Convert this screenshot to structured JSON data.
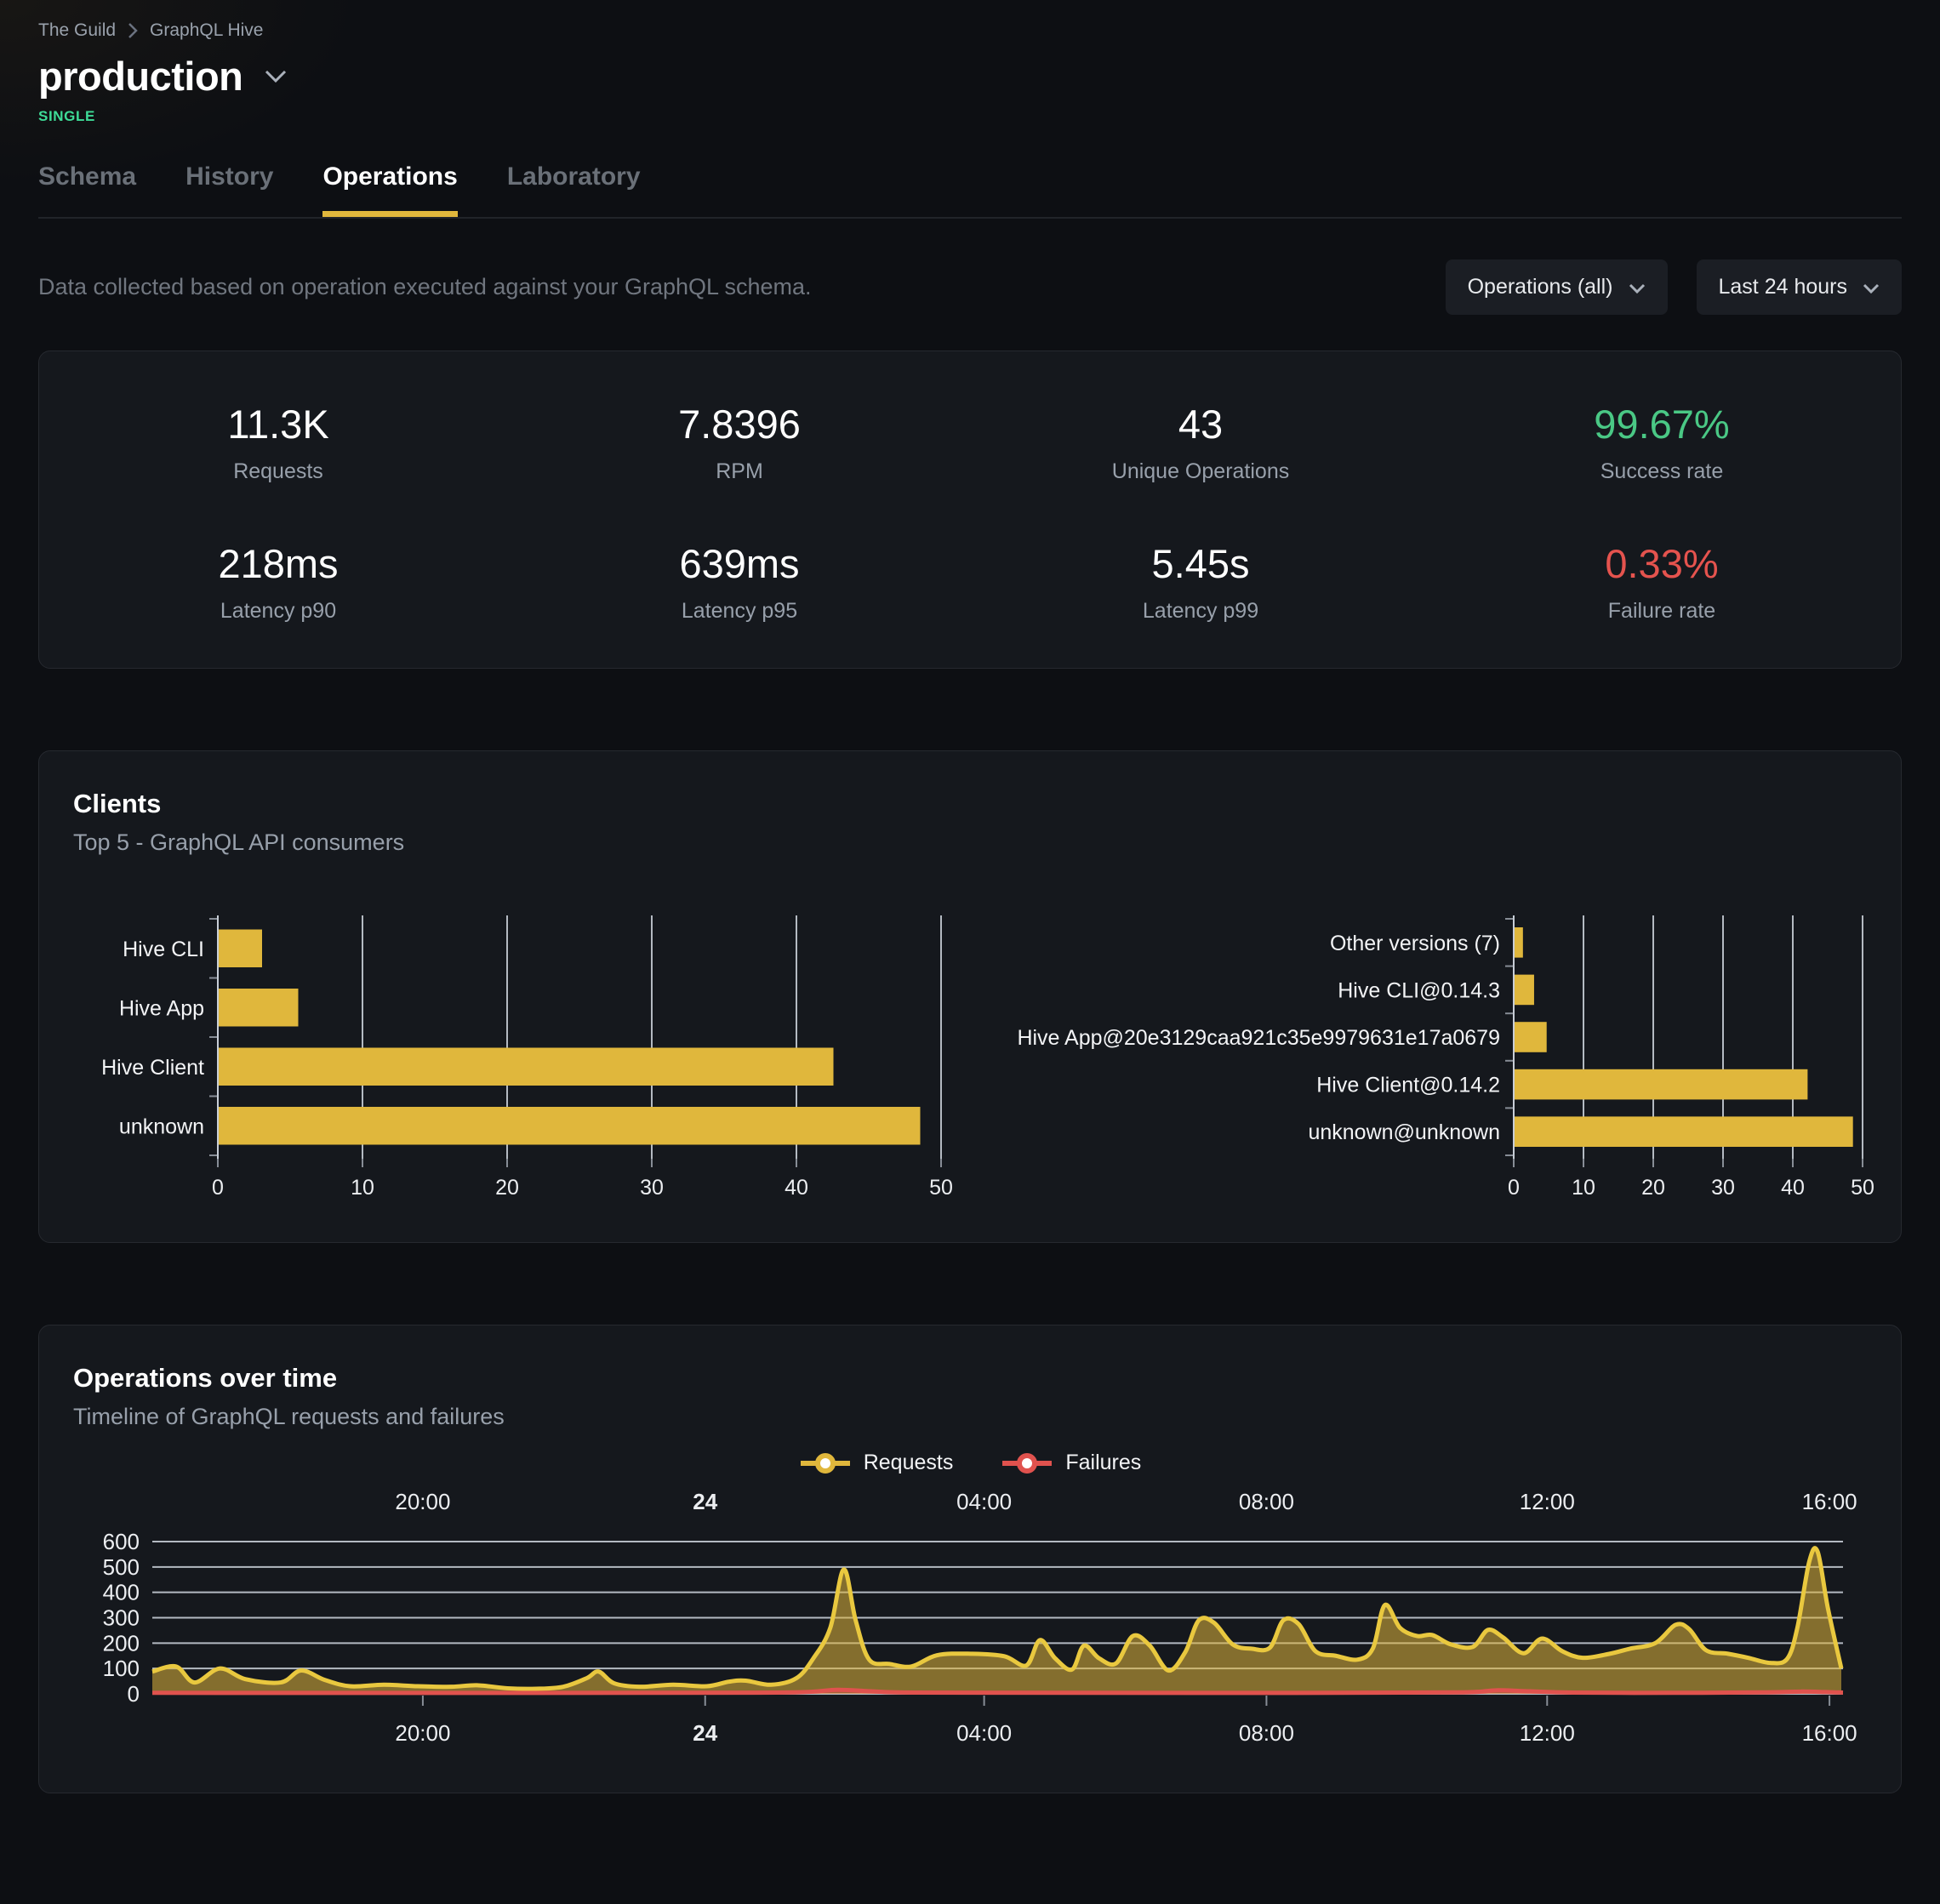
{
  "breadcrumb": {
    "org": "The Guild",
    "project": "GraphQL Hive"
  },
  "target": {
    "name": "production",
    "type_badge": "SINGLE"
  },
  "tabs": [
    {
      "label": "Schema",
      "active": false
    },
    {
      "label": "History",
      "active": false
    },
    {
      "label": "Operations",
      "active": true
    },
    {
      "label": "Laboratory",
      "active": false
    }
  ],
  "filters": {
    "description": "Data collected based on operation executed against your GraphQL schema.",
    "operations_dropdown": "Operations (all)",
    "period_dropdown": "Last 24 hours"
  },
  "stats": [
    {
      "value": "11.3K",
      "label": "Requests"
    },
    {
      "value": "7.8396",
      "label": "RPM"
    },
    {
      "value": "43",
      "label": "Unique Operations"
    },
    {
      "value": "99.67%",
      "label": "Success rate"
    },
    {
      "value": "218ms",
      "label": "Latency p90"
    },
    {
      "value": "639ms",
      "label": "Latency p95"
    },
    {
      "value": "5.45s",
      "label": "Latency p99"
    },
    {
      "value": "0.33%",
      "label": "Failure rate"
    }
  ],
  "colors": {
    "accent_yellow": "#e0b73c",
    "line_yellow": "#e9c83f",
    "success_green": "#4ac885",
    "badge_green": "#3edc97",
    "failure_red": "#e5534e",
    "legend_red": "#e0524e"
  },
  "clients_panel": {
    "title": "Clients",
    "subtitle": "Top 5 - GraphQL API consumers",
    "chart_data": [
      {
        "type": "bar",
        "orientation": "horizontal",
        "categories": [
          "Hive CLI",
          "Hive App",
          "Hive Client",
          "unknown"
        ],
        "values": [
          3,
          5.5,
          42.5,
          48.5
        ],
        "xlim": [
          0,
          50
        ],
        "xticks": [
          0,
          10,
          20,
          30,
          40,
          50
        ]
      },
      {
        "type": "bar",
        "orientation": "horizontal",
        "categories": [
          "Other versions (7)",
          "Hive CLI@0.14.3",
          "Hive App@20e3129caa921c35e9979631e17a0679",
          "Hive Client@0.14.2",
          "unknown@unknown"
        ],
        "values": [
          1.2,
          2.8,
          4.6,
          42,
          48.5
        ],
        "xlim": [
          0,
          50
        ],
        "xticks": [
          0,
          10,
          20,
          30,
          40,
          50
        ]
      }
    ]
  },
  "operations_panel": {
    "title": "Operations over time",
    "subtitle": "Timeline of GraphQL requests and failures",
    "legend": [
      {
        "label": "Requests",
        "color": "#e0b73c"
      },
      {
        "label": "Failures",
        "color": "#e0524e"
      }
    ],
    "chart_data": {
      "type": "area",
      "ylim": [
        0,
        620
      ],
      "yticks": [
        0,
        100,
        200,
        300,
        400,
        500,
        600
      ],
      "xticks": [
        {
          "pos": 0.16,
          "label": "20:00",
          "bold": false
        },
        {
          "pos": 0.327,
          "label": "24",
          "bold": true
        },
        {
          "pos": 0.492,
          "label": "04:00",
          "bold": false
        },
        {
          "pos": 0.659,
          "label": "08:00",
          "bold": false
        },
        {
          "pos": 0.825,
          "label": "12:00",
          "bold": false
        },
        {
          "pos": 0.992,
          "label": "16:00",
          "bold": false
        }
      ],
      "series": [
        {
          "name": "Requests",
          "points": [
            [
              0,
              88
            ],
            [
              0.014,
              108
            ],
            [
              0.025,
              45
            ],
            [
              0.04,
              100
            ],
            [
              0.055,
              58
            ],
            [
              0.076,
              45
            ],
            [
              0.088,
              92
            ],
            [
              0.102,
              55
            ],
            [
              0.117,
              30
            ],
            [
              0.137,
              36
            ],
            [
              0.157,
              30
            ],
            [
              0.177,
              28
            ],
            [
              0.192,
              34
            ],
            [
              0.21,
              22
            ],
            [
              0.227,
              20
            ],
            [
              0.243,
              28
            ],
            [
              0.257,
              62
            ],
            [
              0.264,
              88
            ],
            [
              0.273,
              42
            ],
            [
              0.288,
              28
            ],
            [
              0.308,
              36
            ],
            [
              0.328,
              30
            ],
            [
              0.341,
              48
            ],
            [
              0.351,
              52
            ],
            [
              0.366,
              36
            ],
            [
              0.381,
              62
            ],
            [
              0.391,
              140
            ],
            [
              0.401,
              260
            ],
            [
              0.409,
              490
            ],
            [
              0.416,
              290
            ],
            [
              0.424,
              135
            ],
            [
              0.436,
              118
            ],
            [
              0.449,
              108
            ],
            [
              0.464,
              152
            ],
            [
              0.484,
              158
            ],
            [
              0.504,
              148
            ],
            [
              0.517,
              112
            ],
            [
              0.525,
              212
            ],
            [
              0.534,
              140
            ],
            [
              0.544,
              96
            ],
            [
              0.551,
              190
            ],
            [
              0.56,
              140
            ],
            [
              0.57,
              120
            ],
            [
              0.58,
              228
            ],
            [
              0.59,
              190
            ],
            [
              0.601,
              92
            ],
            [
              0.611,
              165
            ],
            [
              0.619,
              290
            ],
            [
              0.628,
              280
            ],
            [
              0.639,
              195
            ],
            [
              0.65,
              178
            ],
            [
              0.661,
              182
            ],
            [
              0.669,
              290
            ],
            [
              0.678,
              275
            ],
            [
              0.688,
              168
            ],
            [
              0.7,
              150
            ],
            [
              0.713,
              135
            ],
            [
              0.722,
              180
            ],
            [
              0.729,
              350
            ],
            [
              0.738,
              260
            ],
            [
              0.748,
              228
            ],
            [
              0.757,
              232
            ],
            [
              0.768,
              195
            ],
            [
              0.781,
              185
            ],
            [
              0.79,
              252
            ],
            [
              0.799,
              222
            ],
            [
              0.811,
              160
            ],
            [
              0.822,
              218
            ],
            [
              0.834,
              168
            ],
            [
              0.846,
              142
            ],
            [
              0.862,
              158
            ],
            [
              0.874,
              178
            ],
            [
              0.889,
              200
            ],
            [
              0.901,
              272
            ],
            [
              0.909,
              255
            ],
            [
              0.919,
              172
            ],
            [
              0.932,
              158
            ],
            [
              0.944,
              142
            ],
            [
              0.957,
              122
            ],
            [
              0.967,
              138
            ],
            [
              0.973,
              260
            ],
            [
              0.98,
              520
            ],
            [
              0.985,
              560
            ],
            [
              0.991,
              340
            ],
            [
              0.999,
              100
            ]
          ]
        },
        {
          "name": "Failures",
          "points": [
            [
              0,
              4
            ],
            [
              0.3,
              4
            ],
            [
              0.38,
              6
            ],
            [
              0.405,
              16
            ],
            [
              0.425,
              10
            ],
            [
              0.45,
              5
            ],
            [
              0.55,
              4
            ],
            [
              0.7,
              4
            ],
            [
              0.775,
              6
            ],
            [
              0.795,
              14
            ],
            [
              0.815,
              10
            ],
            [
              0.84,
              5
            ],
            [
              0.9,
              4
            ],
            [
              0.955,
              6
            ],
            [
              0.975,
              9
            ],
            [
              0.99,
              7
            ],
            [
              1,
              5
            ]
          ]
        }
      ]
    }
  }
}
